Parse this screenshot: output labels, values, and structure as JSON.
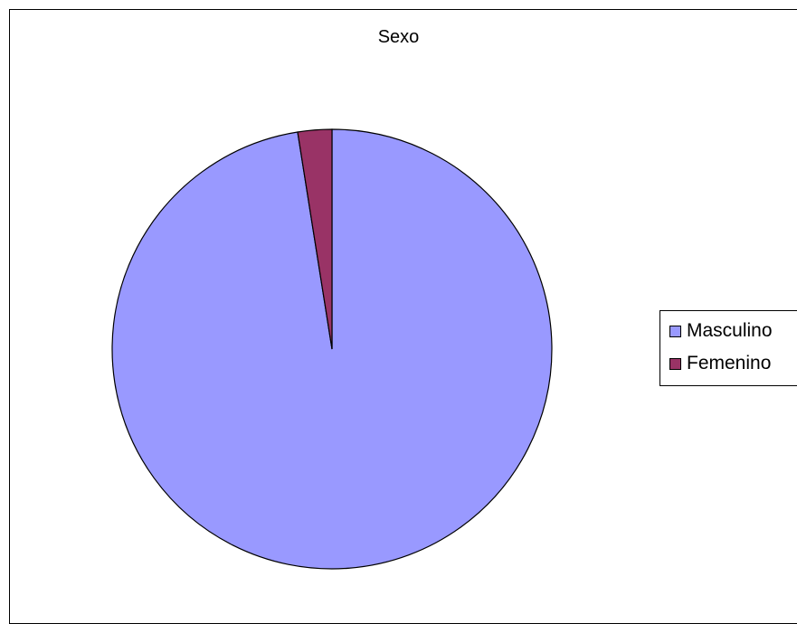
{
  "chart_data": {
    "type": "pie",
    "title": "Sexo",
    "categories": [
      "Masculino",
      "Femenino"
    ],
    "values": [
      97.5,
      2.5
    ],
    "colors": [
      "#9999ff",
      "#993366"
    ],
    "legend_position": "right"
  }
}
